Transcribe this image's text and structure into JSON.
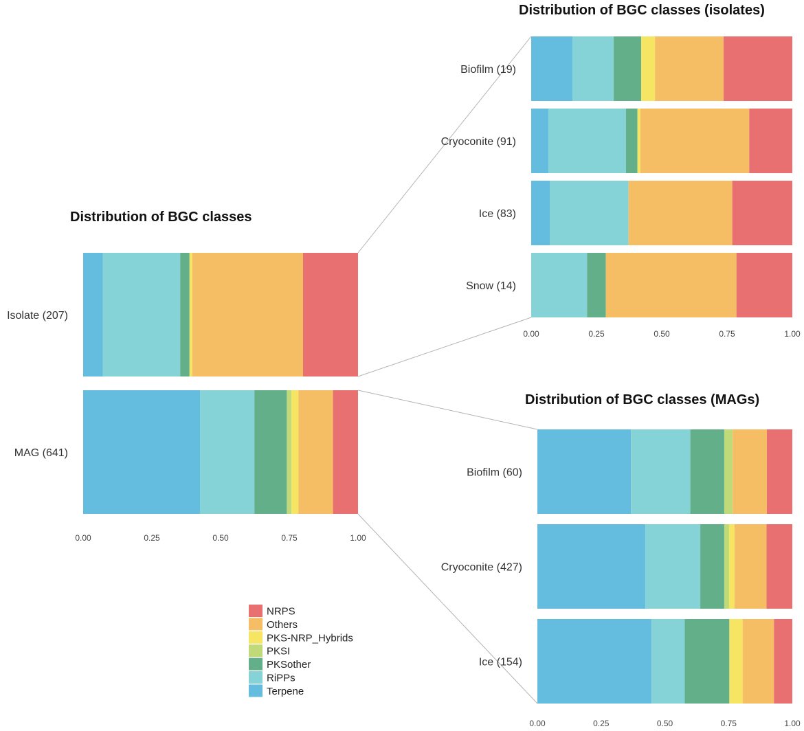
{
  "colors": {
    "NRPS": "#E87071",
    "Others": "#F6BE64",
    "PKS-NRP_Hybrids": "#F5E563",
    "PKSI": "#C0DA7A",
    "PKSother": "#63AF89",
    "RiPPs": "#85D3D6",
    "Terpene": "#64BCDF"
  },
  "legend": {
    "items": [
      "NRPS",
      "Others",
      "PKS-NRP_Hybrids",
      "PKSI",
      "PKSother",
      "RiPPs",
      "Terpene"
    ]
  },
  "chart_data": [
    {
      "id": "main",
      "type": "bar",
      "orientation": "horizontal",
      "stacked": "proportion",
      "title": "Distribution of BGC classes",
      "categories": [
        "Isolate (207)",
        "MAG (641)"
      ],
      "xlim": [
        0,
        1
      ],
      "xticks": [
        "0.00",
        "0.25",
        "0.50",
        "0.75",
        "1.00"
      ],
      "series": [
        {
          "name": "Terpene",
          "values": [
            0.072,
            0.425
          ]
        },
        {
          "name": "RiPPs",
          "values": [
            0.281,
            0.198
          ]
        },
        {
          "name": "PKSother",
          "values": [
            0.034,
            0.118
          ]
        },
        {
          "name": "PKSI",
          "values": [
            0.0,
            0.017
          ]
        },
        {
          "name": "PKS-NRP_Hybrids",
          "values": [
            0.01,
            0.025
          ]
        },
        {
          "name": "Others",
          "values": [
            0.403,
            0.126
          ]
        },
        {
          "name": "NRPS",
          "values": [
            0.2,
            0.091
          ]
        }
      ]
    },
    {
      "id": "isolates",
      "type": "bar",
      "orientation": "horizontal",
      "stacked": "proportion",
      "title": "Distribution of BGC classes (isolates)",
      "categories": [
        "Biofilm (19)",
        "Cryoconite (91)",
        "Ice (83)",
        "Snow (14)"
      ],
      "xlim": [
        0,
        1
      ],
      "xticks": [
        "0.00",
        "0.25",
        "0.50",
        "0.75",
        "1.00"
      ],
      "series": [
        {
          "name": "Terpene",
          "values": [
            0.158,
            0.066,
            0.072,
            0.0
          ]
        },
        {
          "name": "RiPPs",
          "values": [
            0.158,
            0.297,
            0.301,
            0.214
          ]
        },
        {
          "name": "PKSother",
          "values": [
            0.105,
            0.044,
            0.0,
            0.072
          ]
        },
        {
          "name": "PKSI",
          "values": [
            0.0,
            0.0,
            0.0,
            0.0
          ]
        },
        {
          "name": "PKS-NRP_Hybrids",
          "values": [
            0.053,
            0.011,
            0.0,
            0.0
          ]
        },
        {
          "name": "Others",
          "values": [
            0.263,
            0.417,
            0.397,
            0.5
          ]
        },
        {
          "name": "NRPS",
          "values": [
            0.263,
            0.165,
            0.23,
            0.214
          ]
        }
      ]
    },
    {
      "id": "mags",
      "type": "bar",
      "orientation": "horizontal",
      "stacked": "proportion",
      "title": "Distribution of BGC classes (MAGs)",
      "categories": [
        "Biofilm (60)",
        "Cryoconite (427)",
        "Ice (154)"
      ],
      "xlim": [
        0,
        1
      ],
      "xticks": [
        "0.00",
        "0.25",
        "0.50",
        "0.75",
        "1.00"
      ],
      "series": [
        {
          "name": "Terpene",
          "values": [
            0.367,
            0.424,
            0.448
          ]
        },
        {
          "name": "RiPPs",
          "values": [
            0.233,
            0.215,
            0.13
          ]
        },
        {
          "name": "PKSother",
          "values": [
            0.133,
            0.094,
            0.175
          ]
        },
        {
          "name": "PKSI",
          "values": [
            0.033,
            0.019,
            0.0
          ]
        },
        {
          "name": "PKS-NRP_Hybrids",
          "values": [
            0.0,
            0.021,
            0.052
          ]
        },
        {
          "name": "Others",
          "values": [
            0.134,
            0.126,
            0.123
          ]
        },
        {
          "name": "NRPS",
          "values": [
            0.1,
            0.101,
            0.072
          ]
        }
      ]
    }
  ]
}
